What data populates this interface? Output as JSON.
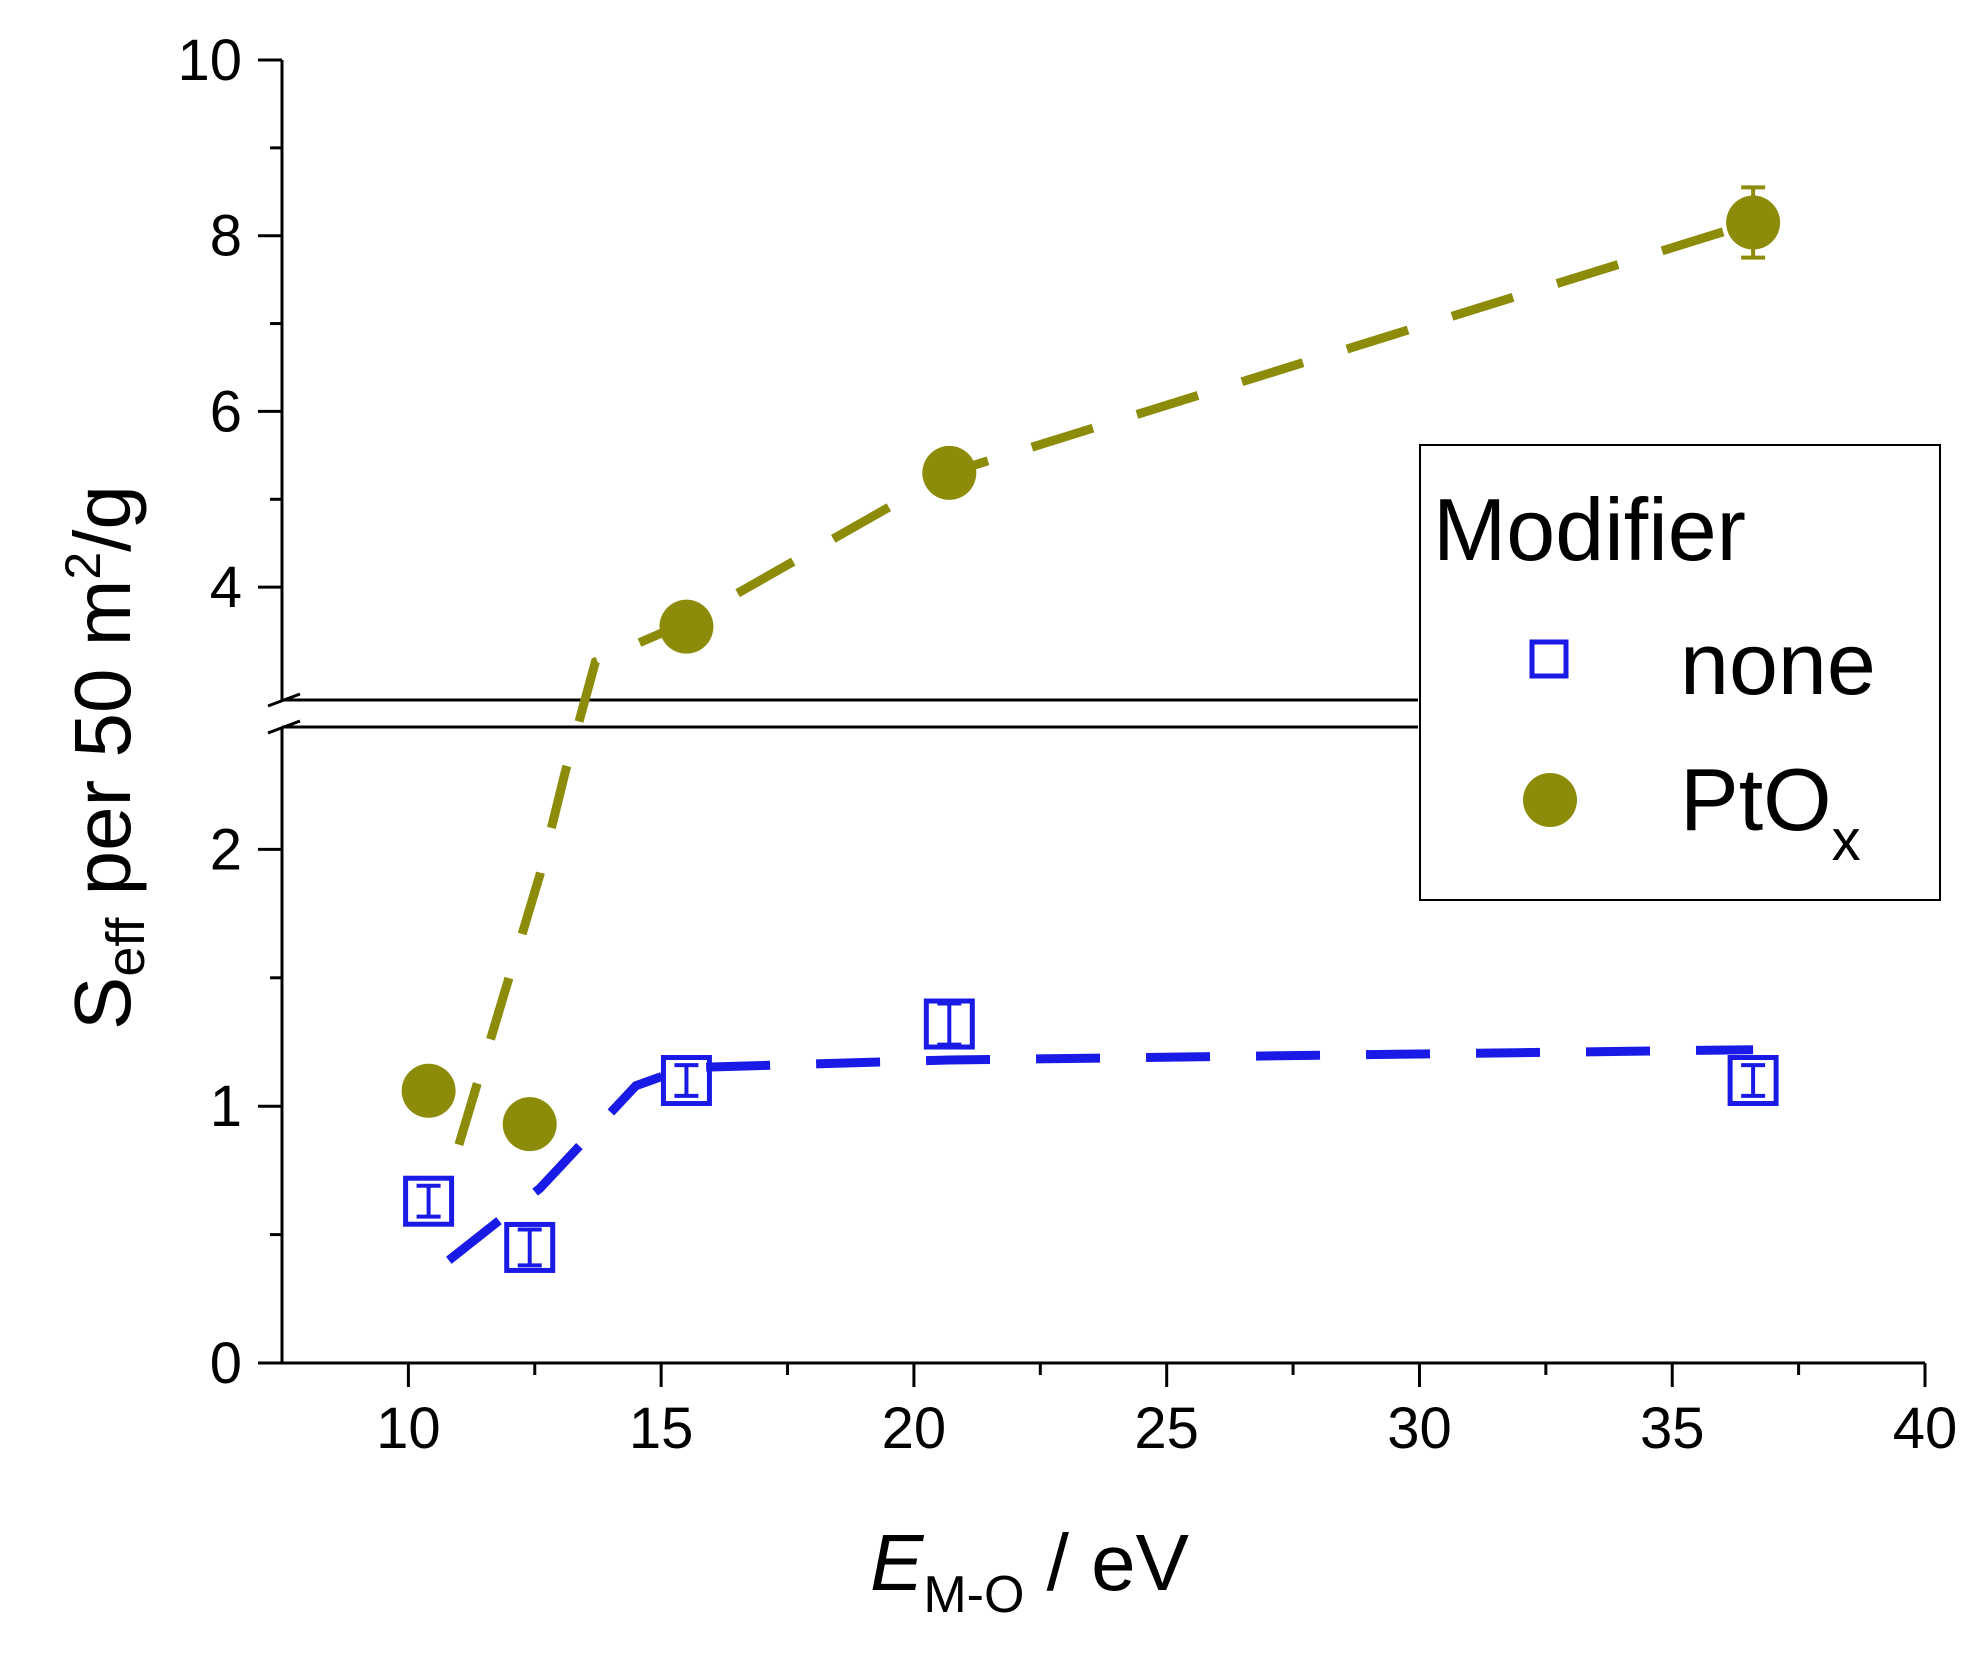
{
  "chart_data": {
    "type": "scatter",
    "title": "",
    "xlabel": {
      "main": "E",
      "sub": "M-O",
      "unit": " / eV"
    },
    "ylabel": {
      "main": "S",
      "sub": "eff",
      "rest": " per 50 m",
      "sup": "2",
      "tail": "/g"
    },
    "xlim": [
      7.5,
      40
    ],
    "x_ticks": [
      10,
      15,
      20,
      25,
      30,
      35,
      40
    ],
    "x_tick_labels": [
      "10",
      "15",
      "20",
      "25",
      "30",
      "35",
      "40"
    ],
    "y_break": {
      "lower_range": [
        0,
        2.5
      ],
      "upper_range": [
        3,
        10
      ]
    },
    "y_ticks_lower": [
      0,
      1,
      2
    ],
    "y_tick_labels_lower": [
      "0",
      "1",
      "2"
    ],
    "y_ticks_upper": [
      4,
      6,
      8,
      10
    ],
    "y_tick_labels_upper": [
      "4",
      "6",
      "8",
      "10"
    ],
    "legend": {
      "title": "Modifier",
      "position": "right",
      "entries": [
        {
          "label": "none",
          "sub": ""
        },
        {
          "label": "PtO",
          "sub": "x"
        }
      ]
    },
    "series": [
      {
        "name": "none",
        "marker": "square-open",
        "color": "#1a1ae6",
        "x": [
          10.4,
          12.4,
          15.5,
          20.7,
          36.6
        ],
        "y": [
          0.63,
          0.45,
          1.1,
          1.32,
          1.1
        ],
        "err": [
          0.06,
          0.07,
          0.06,
          0.08,
          0.06
        ],
        "trend": [
          [
            10.8,
            0.4
          ],
          [
            12.6,
            0.68
          ],
          [
            14.5,
            1.08
          ],
          [
            15.5,
            1.15
          ],
          [
            20.7,
            1.18
          ],
          [
            36.6,
            1.22
          ]
        ]
      },
      {
        "name": "PtOx",
        "marker": "circle-filled",
        "color": "#8c8c0a",
        "x": [
          10.4,
          12.4,
          15.5,
          20.7,
          36.6
        ],
        "y": [
          1.06,
          0.93,
          3.55,
          5.3,
          8.15
        ],
        "err": [
          0.04,
          0.04,
          0.08,
          0.1,
          0.4
        ],
        "trend": [
          [
            11.0,
            0.85
          ],
          [
            12.6,
            1.9
          ],
          [
            13.1,
            2.3
          ],
          [
            13.7,
            3.15
          ],
          [
            15.5,
            3.6
          ],
          [
            20.7,
            5.3
          ],
          [
            36.6,
            8.15
          ]
        ]
      }
    ]
  }
}
